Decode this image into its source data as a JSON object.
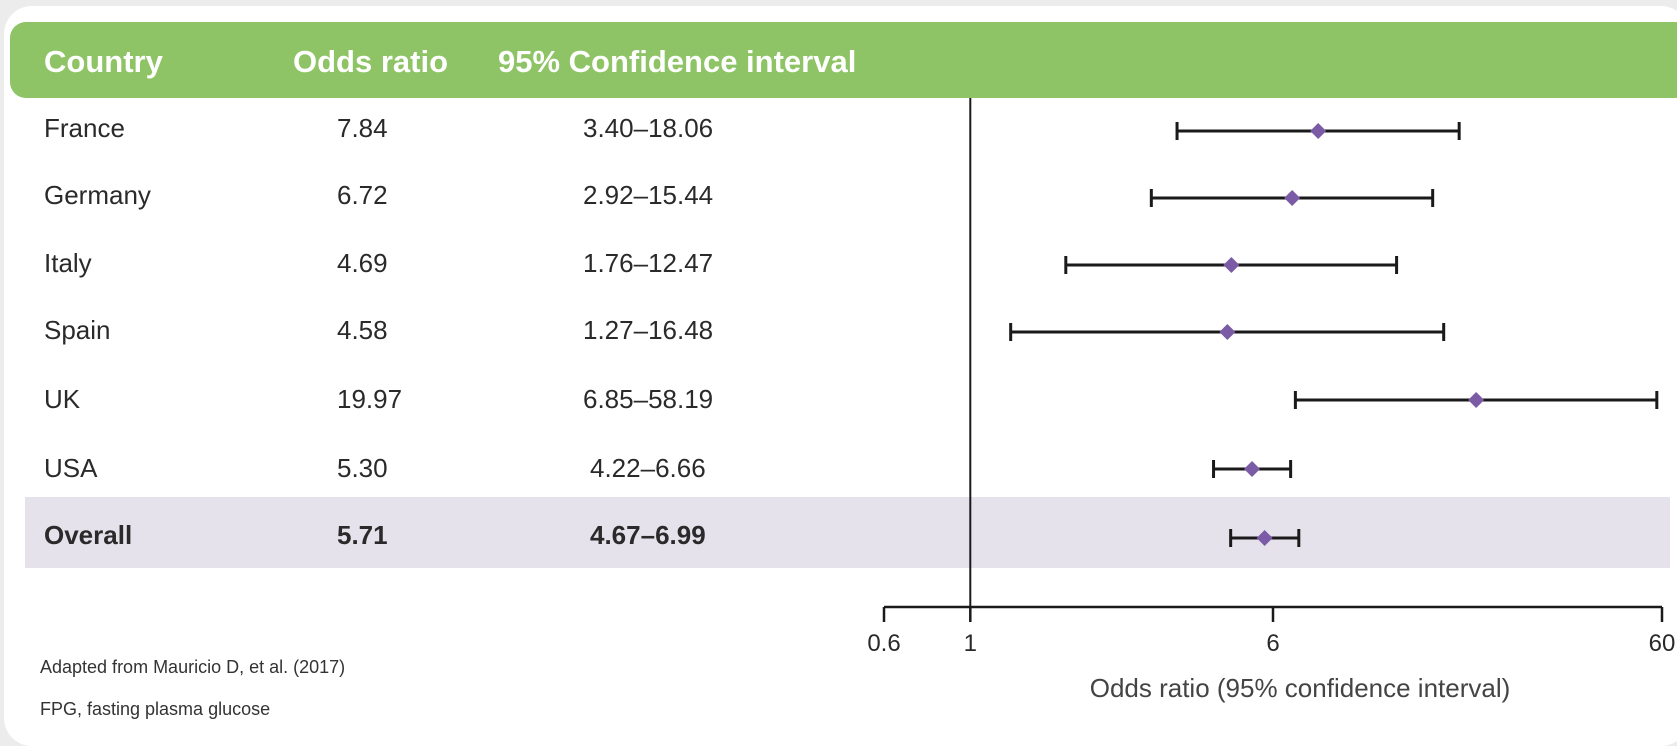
{
  "header": {
    "country": "Country",
    "odds_ratio": "Odds ratio",
    "ci": "95% Confidence interval"
  },
  "rows": [
    {
      "country": "France",
      "or": "7.84",
      "ci": "3.40–18.06"
    },
    {
      "country": "Germany",
      "or": "6.72",
      "ci": "2.92–15.44"
    },
    {
      "country": "Italy",
      "or": "4.69",
      "ci": "1.76–12.47"
    },
    {
      "country": "Spain",
      "or": "4.58",
      "ci": "1.27–16.48"
    },
    {
      "country": "UK",
      "or": "19.97",
      "ci": "6.85–58.19"
    },
    {
      "country": "USA",
      "or": "5.30",
      "ci": "4.22–6.66"
    }
  ],
  "overall": {
    "country": "Overall",
    "or": "5.71",
    "ci": "4.67–6.99"
  },
  "footnotes": {
    "source": "Adapted from Mauricio D, et al. (2017)",
    "abbrev": "FPG, fasting plasma glucose"
  },
  "colors": {
    "header_bg": "#8fc466",
    "marker": "#7b5aa6",
    "overall_band": "#e6e2ec",
    "whisker": "#1a1a1a"
  },
  "chart_data": {
    "type": "forest",
    "scale": "log",
    "xlim": [
      0.6,
      60
    ],
    "xticks": [
      "0.6",
      "1",
      "6",
      "60"
    ],
    "xlabel": "Odds ratio (95% confidence interval)",
    "reference_line": 1,
    "points": [
      {
        "label": "France",
        "or": 7.84,
        "lower": 3.4,
        "upper": 18.06
      },
      {
        "label": "Germany",
        "or": 6.72,
        "lower": 2.92,
        "upper": 15.44
      },
      {
        "label": "Italy",
        "or": 4.69,
        "lower": 1.76,
        "upper": 12.47
      },
      {
        "label": "Spain",
        "or": 4.58,
        "lower": 1.27,
        "upper": 16.48
      },
      {
        "label": "UK",
        "or": 19.97,
        "lower": 6.85,
        "upper": 58.19
      },
      {
        "label": "USA",
        "or": 5.3,
        "lower": 4.22,
        "upper": 6.66
      },
      {
        "label": "Overall",
        "or": 5.71,
        "lower": 4.67,
        "upper": 6.99
      }
    ]
  }
}
